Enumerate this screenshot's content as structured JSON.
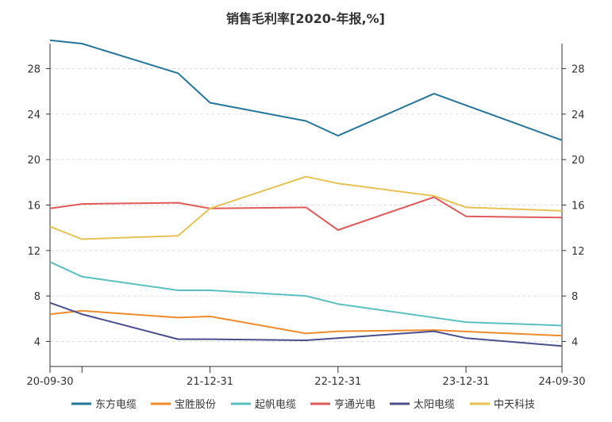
{
  "chart_data": {
    "type": "line",
    "title": "销售毛利率[2020-年报,%]",
    "x": [
      "20-09-30",
      "20-12-31",
      "21-03-31",
      "21-06-30",
      "21-09-30",
      "21-12-31",
      "22-03-31",
      "22-06-30",
      "22-09-30",
      "22-12-31",
      "23-03-31",
      "23-06-30",
      "23-09-30",
      "23-12-31",
      "24-03-31",
      "24-06-30",
      "24-09-30"
    ],
    "x_tick_labels": [
      {
        "x": "20-09-30",
        "label": "20-09-30"
      },
      {
        "x": "20-12-31",
        "label": ""
      },
      {
        "x": "21-12-31",
        "label": "21-12-31"
      },
      {
        "x": "22-12-31",
        "label": "22-12-31"
      },
      {
        "x": "23-12-31",
        "label": "23-12-31"
      },
      {
        "x": "24-09-30",
        "label": "24-09-30"
      }
    ],
    "y_ticks": [
      4,
      8,
      12,
      16,
      20,
      24,
      28
    ],
    "ylim": [
      1.8,
      30.2
    ],
    "grid": true,
    "legend_position": "bottom",
    "series": [
      {
        "name": "东方电缆",
        "color": "#23759a",
        "points": [
          [
            "20-09-30",
            30.5
          ],
          [
            "20-12-31",
            30.2
          ],
          [
            "21-09-30",
            27.6
          ],
          [
            "21-12-31",
            25.0
          ],
          [
            "22-09-30",
            23.4
          ],
          [
            "22-12-31",
            22.1
          ],
          [
            "23-09-30",
            25.8
          ],
          [
            "24-09-30",
            21.7
          ]
        ]
      },
      {
        "name": "宝胜股份",
        "color": "#ef8b2a",
        "points": [
          [
            "20-09-30",
            6.4
          ],
          [
            "20-12-31",
            6.7
          ],
          [
            "21-09-30",
            6.1
          ],
          [
            "21-12-31",
            6.2
          ],
          [
            "22-09-30",
            4.7
          ],
          [
            "22-12-31",
            4.9
          ],
          [
            "23-09-30",
            5.0
          ],
          [
            "24-09-30",
            4.5
          ]
        ]
      },
      {
        "name": "起帆电缆",
        "color": "#5bc0c0",
        "points": [
          [
            "20-09-30",
            11.0
          ],
          [
            "20-12-31",
            9.7
          ],
          [
            "21-09-30",
            8.5
          ],
          [
            "21-12-31",
            8.5
          ],
          [
            "22-09-30",
            8.0
          ],
          [
            "22-12-31",
            7.3
          ],
          [
            "23-12-31",
            5.7
          ],
          [
            "24-09-30",
            5.4
          ]
        ]
      },
      {
        "name": "亨通光电",
        "color": "#e05a5a",
        "points": [
          [
            "20-09-30",
            15.7
          ],
          [
            "20-12-31",
            16.1
          ],
          [
            "21-09-30",
            16.2
          ],
          [
            "21-12-31",
            15.7
          ],
          [
            "22-09-30",
            15.8
          ],
          [
            "22-12-31",
            13.8
          ],
          [
            "23-09-30",
            16.7
          ],
          [
            "23-12-31",
            15.0
          ],
          [
            "24-09-30",
            14.9
          ]
        ]
      },
      {
        "name": "太阳电缆",
        "color": "#4a4f8c",
        "points": [
          [
            "20-09-30",
            7.4
          ],
          [
            "20-12-31",
            6.4
          ],
          [
            "21-09-30",
            4.2
          ],
          [
            "21-12-31",
            4.2
          ],
          [
            "22-09-30",
            4.1
          ],
          [
            "22-12-31",
            4.3
          ],
          [
            "23-09-30",
            4.9
          ],
          [
            "23-12-31",
            4.3
          ],
          [
            "24-09-30",
            3.6
          ]
        ]
      },
      {
        "name": "中天科技",
        "color": "#e6c253",
        "points": [
          [
            "20-09-30",
            14.1
          ],
          [
            "20-12-31",
            13.0
          ],
          [
            "21-09-30",
            13.3
          ],
          [
            "21-12-31",
            15.7
          ],
          [
            "22-09-30",
            18.5
          ],
          [
            "22-12-31",
            17.9
          ],
          [
            "23-09-30",
            16.8
          ],
          [
            "23-12-31",
            15.8
          ],
          [
            "24-09-30",
            15.5
          ]
        ]
      }
    ]
  }
}
